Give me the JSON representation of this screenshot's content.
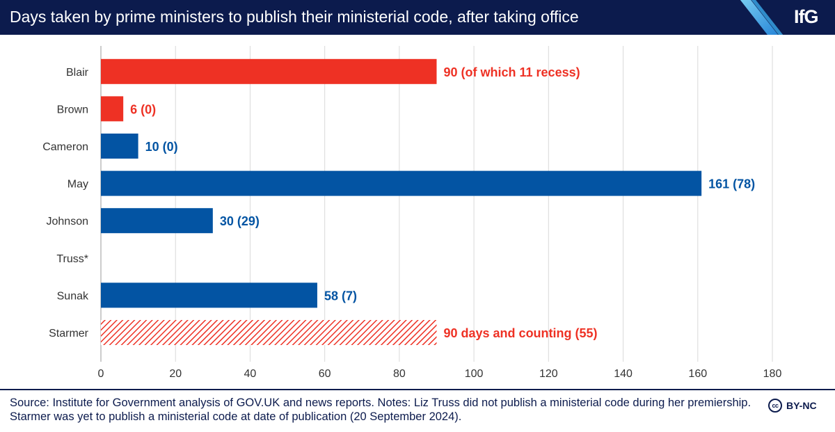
{
  "header": {
    "title": "Days taken by prime ministers to publish their ministerial code, after taking office",
    "logo": "IfG",
    "background": "#0c1b4d"
  },
  "chart_data": {
    "type": "bar",
    "orientation": "horizontal",
    "title": "Days taken by prime ministers to publish their ministerial code, after taking office",
    "xlabel": "",
    "ylabel": "",
    "xlim": [
      0,
      180
    ],
    "xticks": [
      "0",
      "20",
      "40",
      "60",
      "80",
      "100",
      "120",
      "140",
      "160",
      "180"
    ],
    "grid": true,
    "categories": [
      "Blair",
      "Brown",
      "Cameron",
      "May",
      "Johnson",
      "Truss*",
      "Sunak",
      "Starmer"
    ],
    "values": [
      90,
      6,
      10,
      161,
      30,
      null,
      58,
      90
    ],
    "recess_days": [
      11,
      0,
      0,
      78,
      29,
      null,
      7,
      55
    ],
    "data_labels": [
      "90 (of which 11 recess)",
      "6 (0)",
      "10 (0)",
      "161 (78)",
      "30 (29)",
      "",
      "58 (7)",
      "90 days and counting (55)"
    ],
    "bar_styles": [
      "solid",
      "solid",
      "solid",
      "solid",
      "solid",
      "none",
      "solid",
      "hatched"
    ],
    "bar_colors": [
      "#ee3124",
      "#ee3124",
      "#0354a3",
      "#0354a3",
      "#0354a3",
      "",
      "#0354a3",
      "#ee3124"
    ],
    "label_colors": [
      "#ee3124",
      "#ee3124",
      "#0354a3",
      "#0354a3",
      "#0354a3",
      "",
      "#0354a3",
      "#ee3124"
    ],
    "colors": {
      "labour": "#ee3124",
      "conservative": "#0354a3",
      "axis_text": "#333333",
      "grid": "#d9d9d9"
    }
  },
  "footer": {
    "source": "Source: Institute for Government analysis of GOV.UK and news reports. Notes: Liz Truss did not publish a ministerial code during her premiership. Starmer was yet to publish a ministerial code at date of publication (20 September 2024).",
    "cc_mark": "cc",
    "license": "BY-NC"
  }
}
